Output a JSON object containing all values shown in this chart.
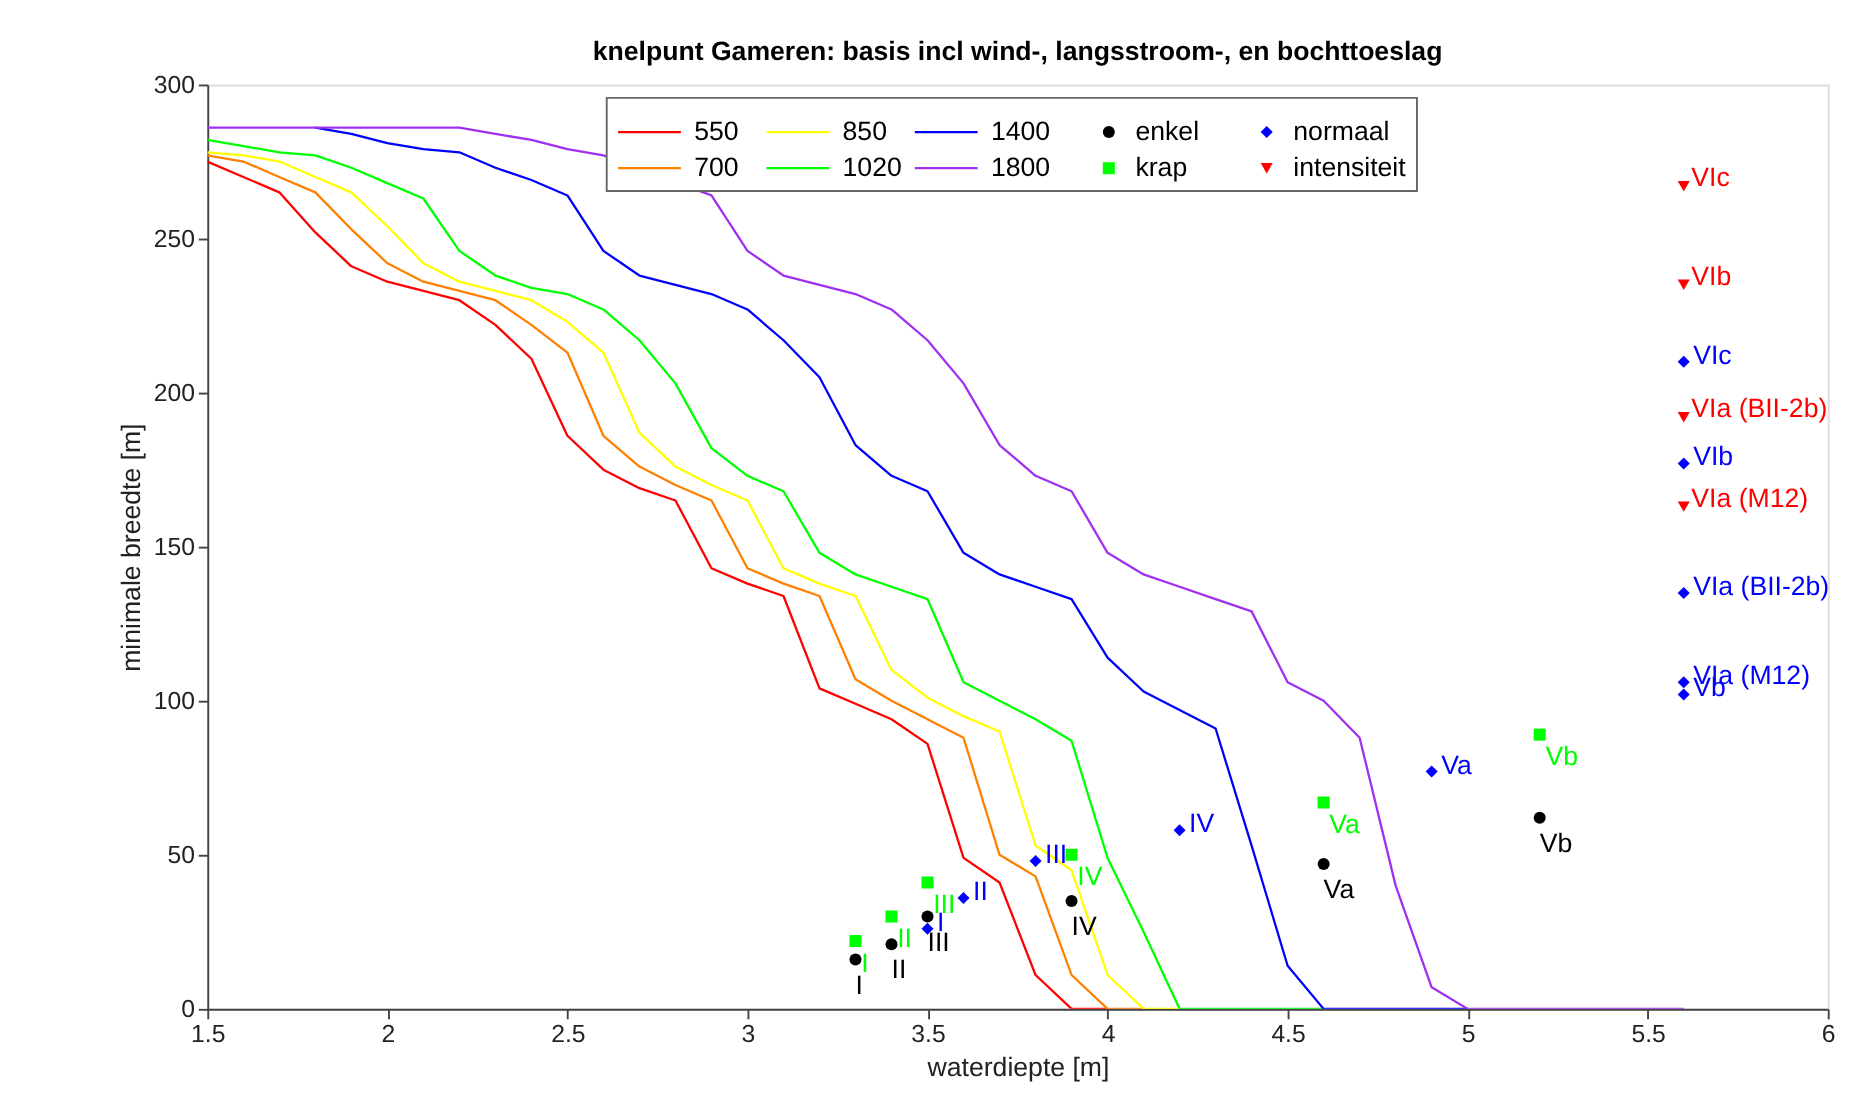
{
  "chart_data": {
    "type": "line",
    "title": "knelpunt Gameren: basis incl wind-, langsstroom-, en bochttoeslag",
    "xlabel": "waterdiepte [m]",
    "ylabel": "minimale breedte [m]",
    "x": [
      1.5,
      1.6,
      1.7,
      1.8,
      1.9,
      2.0,
      2.1,
      2.2,
      2.3,
      2.4,
      2.5,
      2.6,
      2.7,
      2.8,
      2.9,
      3.0,
      3.1,
      3.2,
      3.3,
      3.4,
      3.5,
      3.6,
      3.7,
      3.8,
      3.9,
      4.0,
      4.1,
      4.2,
      4.3,
      4.4,
      4.5,
      4.6,
      4.7,
      4.8,
      4.9,
      5.0,
      5.1,
      5.2,
      5.3,
      5.4,
      5.5,
      5.6
    ],
    "series": [
      {
        "name": "550",
        "color": "#ff0000",
        "values": [
          275,
          270,
          265,
          252,
          241,
          236,
          233,
          230,
          222,
          211,
          186,
          175,
          169,
          165,
          143,
          138,
          134,
          104,
          99,
          94,
          86,
          49,
          41,
          11,
          0,
          0,
          null,
          null,
          null,
          null,
          null,
          null,
          null,
          null,
          null,
          null,
          null,
          null,
          null,
          null,
          null,
          null
        ]
      },
      {
        "name": "700",
        "color": "#ff8000",
        "values": [
          277,
          275,
          270,
          265,
          253,
          242,
          236,
          233,
          230,
          222,
          213,
          186,
          176,
          170,
          165,
          143,
          138,
          134,
          107,
          100,
          94,
          88,
          50,
          43,
          11,
          0,
          0,
          null,
          null,
          null,
          null,
          null,
          null,
          null,
          null,
          null,
          null,
          null,
          null,
          null,
          null,
          null
        ]
      },
      {
        "name": "850",
        "color": "#ffff00",
        "values": [
          278,
          277,
          275,
          270,
          265,
          254,
          242,
          236,
          233,
          230,
          223,
          213,
          187,
          176,
          170,
          165,
          143,
          138,
          134,
          110,
          101,
          95,
          90,
          53,
          45,
          11,
          0,
          0,
          null,
          null,
          null,
          null,
          null,
          null,
          null,
          null,
          null,
          null,
          null,
          null,
          null,
          null
        ]
      },
      {
        "name": "1020",
        "color": "#00ff00",
        "values": [
          282,
          280,
          278,
          277,
          273,
          268,
          263,
          246,
          238,
          234,
          232,
          227,
          217,
          203,
          182,
          173,
          168,
          148,
          141,
          137,
          133,
          106,
          100,
          94,
          87,
          49,
          25,
          0,
          0,
          0,
          0,
          0,
          null,
          null,
          null,
          null,
          null,
          null,
          null,
          null,
          null,
          null
        ]
      },
      {
        "name": "1400",
        "color": "#0000ff",
        "values": [
          null,
          null,
          null,
          286,
          284,
          281,
          279,
          278,
          273,
          269,
          264,
          246,
          238,
          235,
          232,
          227,
          217,
          205,
          183,
          173,
          168,
          148,
          141,
          137,
          133,
          114,
          103,
          97,
          91,
          53,
          14,
          0,
          0,
          0,
          0,
          0,
          null,
          null,
          null,
          null,
          null,
          null
        ]
      },
      {
        "name": "1800",
        "color": "#a030f0",
        "values": [
          286,
          286,
          286,
          286,
          286,
          286,
          286,
          286,
          284,
          282,
          279,
          277,
          null,
          null,
          264,
          246,
          238,
          235,
          232,
          227,
          217,
          203,
          183,
          173,
          168,
          148,
          141,
          137,
          133,
          129,
          106,
          100,
          88,
          40,
          7,
          0,
          0,
          0,
          0,
          0,
          0,
          0
        ]
      },
      {
        "name": "enkel",
        "color": "#000000",
        "type": "scatter",
        "marker": "circle",
        "x": [
          3.3,
          3.4,
          3.5,
          3.9,
          4.6,
          5.2
        ],
        "values": [
          16,
          21,
          30,
          35,
          47,
          62
        ],
        "value_labels": [
          "I",
          "II",
          "III",
          "IV",
          "Va",
          "Vb"
        ]
      },
      {
        "name": "krap",
        "color": "#00ff00",
        "type": "scatter",
        "marker": "square",
        "x": [
          3.3,
          3.4,
          3.5,
          3.9,
          4.6,
          5.2
        ],
        "values": [
          22,
          30,
          41,
          50,
          67,
          89
        ],
        "value_labels": [
          "I",
          "II",
          "III",
          "IV",
          "Va",
          "Vb"
        ]
      },
      {
        "name": "normaal",
        "color": "#0000ff",
        "type": "scatter",
        "marker": "diamond",
        "x": [
          3.5,
          3.6,
          3.8,
          4.2,
          4.9,
          5.6,
          5.6,
          5.6,
          5.6,
          5.6
        ],
        "values": [
          26,
          36,
          48,
          58,
          77,
          102,
          106,
          135,
          177,
          210
        ],
        "value_labels": [
          "I",
          "II",
          "III",
          "IV",
          "Va",
          "Vb",
          "VIa (M12)",
          "VIa (BII-2b)",
          "VIb",
          "VIc"
        ]
      },
      {
        "name": "intensiteit",
        "color": "#ff0000",
        "type": "scatter",
        "marker": "triangle",
        "x": [
          5.6,
          5.6,
          5.6,
          5.6
        ],
        "values": [
          163,
          192,
          235,
          267
        ],
        "value_labels": [
          "VIa (M12)",
          "VIa (BII-2b)",
          "VIb",
          "VIc"
        ]
      }
    ],
    "xlim": [
      1.5,
      6
    ],
    "xticks": [
      1.5,
      2,
      2.5,
      3,
      3.5,
      4,
      4.5,
      5,
      5.5,
      6
    ],
    "ylim": [
      0,
      300
    ],
    "yticks": [
      0,
      50,
      100,
      150,
      200,
      250,
      300
    ],
    "grid": false,
    "legend": "top",
    "line_style": "solid"
  }
}
